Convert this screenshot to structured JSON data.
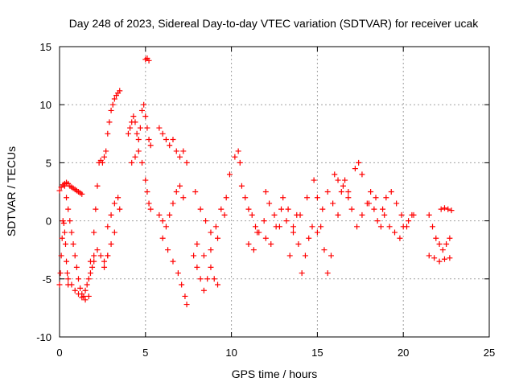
{
  "chart_data": {
    "type": "scatter",
    "title": "Day 248 of 2023, Sidereal Day-to-day VTEC variation (SDTVAR) for receiver ucak",
    "xlabel": "GPS time / hours",
    "ylabel": "SDTVAR / TECUs",
    "xlim": [
      0,
      25
    ],
    "ylim": [
      -10,
      15
    ],
    "xticks": [
      0,
      5,
      10,
      15,
      20,
      25
    ],
    "yticks": [
      -10,
      -5,
      0,
      5,
      10,
      15
    ],
    "xtick_labels": [
      "0",
      "5",
      "10",
      "15",
      "20",
      "25"
    ],
    "ytick_labels": [
      "-10",
      "-5",
      "0",
      "5",
      "10",
      "15"
    ],
    "grid": true,
    "marker": "+",
    "color": "#ff0000",
    "series": [
      {
        "name": "SDTVAR",
        "points": [
          [
            0.0,
            2.6
          ],
          [
            0.1,
            2.9
          ],
          [
            0.2,
            3.1
          ],
          [
            0.3,
            3.2
          ],
          [
            0.4,
            3.3
          ],
          [
            0.5,
            3.2
          ],
          [
            0.6,
            3.0
          ],
          [
            0.7,
            2.9
          ],
          [
            0.8,
            2.8
          ],
          [
            0.9,
            2.7
          ],
          [
            1.0,
            2.6
          ],
          [
            1.1,
            2.5
          ],
          [
            1.2,
            2.4
          ],
          [
            1.3,
            2.3
          ],
          [
            0.0,
            -5.5
          ],
          [
            0.05,
            -4.5
          ],
          [
            0.1,
            -3.0
          ],
          [
            0.15,
            -1.5
          ],
          [
            0.2,
            0.0
          ],
          [
            0.25,
            -0.2
          ],
          [
            0.3,
            -1.0
          ],
          [
            0.35,
            -2.0
          ],
          [
            0.4,
            -3.5
          ],
          [
            0.45,
            -4.5
          ],
          [
            0.5,
            -5.5
          ],
          [
            0.3,
            3.0
          ],
          [
            0.4,
            2.0
          ],
          [
            0.5,
            1.0
          ],
          [
            0.6,
            0.0
          ],
          [
            0.7,
            -1.0
          ],
          [
            0.8,
            -2.0
          ],
          [
            0.9,
            -3.0
          ],
          [
            1.0,
            -4.0
          ],
          [
            1.1,
            -5.0
          ],
          [
            1.2,
            -5.8
          ],
          [
            1.3,
            -6.3
          ],
          [
            1.4,
            -6.5
          ],
          [
            1.5,
            -6.0
          ],
          [
            1.6,
            -5.5
          ],
          [
            1.7,
            -5.0
          ],
          [
            1.8,
            -4.5
          ],
          [
            1.9,
            -4.0
          ],
          [
            2.0,
            -3.5
          ],
          [
            0.5,
            -5.0
          ],
          [
            0.7,
            -5.5
          ],
          [
            0.9,
            -6.0
          ],
          [
            1.1,
            -6.3
          ],
          [
            1.3,
            -6.6
          ],
          [
            1.5,
            -6.8
          ],
          [
            1.7,
            -6.5
          ],
          [
            1.8,
            -3.5
          ],
          [
            2.0,
            -3.0
          ],
          [
            2.2,
            -2.5
          ],
          [
            2.4,
            -3.0
          ],
          [
            2.6,
            -3.5
          ],
          [
            2.8,
            -3.0
          ],
          [
            2.0,
            -1.0
          ],
          [
            2.1,
            1.0
          ],
          [
            2.2,
            3.0
          ],
          [
            2.3,
            5.0
          ],
          [
            2.4,
            5.2
          ],
          [
            2.5,
            5.0
          ],
          [
            2.6,
            5.5
          ],
          [
            2.7,
            6.0
          ],
          [
            2.8,
            7.5
          ],
          [
            2.9,
            8.5
          ],
          [
            3.0,
            9.5
          ],
          [
            3.1,
            10.0
          ],
          [
            3.2,
            10.5
          ],
          [
            3.3,
            10.8
          ],
          [
            3.4,
            11.0
          ],
          [
            3.5,
            11.2
          ],
          [
            2.8,
            -0.5
          ],
          [
            3.0,
            0.5
          ],
          [
            3.2,
            1.5
          ],
          [
            3.4,
            2.0
          ],
          [
            3.5,
            1.0
          ],
          [
            2.6,
            -4.0
          ],
          [
            2.8,
            -3.0
          ],
          [
            3.0,
            -2.0
          ],
          [
            3.2,
            -1.0
          ],
          [
            4.0,
            7.5
          ],
          [
            4.1,
            8.0
          ],
          [
            4.2,
            8.5
          ],
          [
            4.3,
            9.0
          ],
          [
            4.4,
            8.5
          ],
          [
            4.5,
            7.5
          ],
          [
            4.6,
            7.0
          ],
          [
            4.7,
            8.0
          ],
          [
            4.8,
            9.5
          ],
          [
            4.9,
            10.0
          ],
          [
            5.0,
            9.0
          ],
          [
            5.1,
            8.0
          ],
          [
            5.2,
            7.0
          ],
          [
            5.3,
            6.5
          ],
          [
            4.2,
            5.0
          ],
          [
            4.4,
            5.5
          ],
          [
            4.6,
            6.0
          ],
          [
            4.8,
            5.0
          ],
          [
            5.0,
            3.5
          ],
          [
            5.1,
            2.5
          ],
          [
            5.2,
            1.5
          ],
          [
            5.3,
            1.0
          ],
          [
            5.0,
            13.9
          ],
          [
            5.1,
            14.0
          ],
          [
            5.2,
            13.8
          ],
          [
            5.8,
            8.0
          ],
          [
            6.0,
            7.5
          ],
          [
            6.2,
            7.0
          ],
          [
            6.4,
            6.5
          ],
          [
            6.6,
            7.0
          ],
          [
            6.8,
            6.0
          ],
          [
            7.0,
            5.5
          ],
          [
            7.2,
            6.0
          ],
          [
            7.4,
            5.0
          ],
          [
            5.8,
            0.5
          ],
          [
            6.0,
            0.0
          ],
          [
            6.2,
            -0.5
          ],
          [
            6.4,
            0.5
          ],
          [
            6.6,
            1.5
          ],
          [
            6.8,
            2.5
          ],
          [
            7.0,
            3.0
          ],
          [
            7.2,
            2.0
          ],
          [
            6.0,
            -1.5
          ],
          [
            6.3,
            -2.5
          ],
          [
            6.6,
            -3.5
          ],
          [
            6.9,
            -4.5
          ],
          [
            7.1,
            -5.5
          ],
          [
            7.3,
            -6.5
          ],
          [
            7.4,
            -7.2
          ],
          [
            7.8,
            -3.0
          ],
          [
            8.0,
            -4.0
          ],
          [
            8.2,
            -5.0
          ],
          [
            8.4,
            -6.0
          ],
          [
            8.6,
            -5.0
          ],
          [
            8.8,
            -4.0
          ],
          [
            9.0,
            -5.0
          ],
          [
            9.2,
            -5.5
          ],
          [
            7.9,
            2.5
          ],
          [
            8.2,
            1.0
          ],
          [
            8.5,
            0.0
          ],
          [
            8.8,
            -1.0
          ],
          [
            9.1,
            -0.5
          ],
          [
            9.4,
            1.0
          ],
          [
            9.7,
            2.0
          ],
          [
            9.9,
            4.0
          ],
          [
            8.0,
            -2.0
          ],
          [
            8.4,
            -3.0
          ],
          [
            8.8,
            -2.5
          ],
          [
            9.2,
            -1.5
          ],
          [
            9.6,
            0.5
          ],
          [
            10.2,
            5.5
          ],
          [
            10.4,
            6.0
          ],
          [
            10.5,
            5.0
          ],
          [
            10.6,
            3.0
          ],
          [
            10.8,
            2.0
          ],
          [
            11.0,
            1.0
          ],
          [
            11.2,
            0.5
          ],
          [
            11.4,
            -0.5
          ],
          [
            11.5,
            -1.0
          ],
          [
            11.0,
            -2.0
          ],
          [
            11.3,
            -2.5
          ],
          [
            11.6,
            -1.0
          ],
          [
            11.9,
            0.0
          ],
          [
            12.0,
            2.5
          ],
          [
            12.2,
            1.5
          ],
          [
            12.5,
            0.5
          ],
          [
            12.8,
            -0.5
          ],
          [
            12.0,
            -1.5
          ],
          [
            12.3,
            -2.0
          ],
          [
            12.6,
            -0.5
          ],
          [
            12.9,
            1.0
          ],
          [
            13.2,
            0.0
          ],
          [
            13.4,
            -3.0
          ],
          [
            13.6,
            -1.0
          ],
          [
            13.8,
            0.5
          ],
          [
            13.0,
            2.0
          ],
          [
            13.3,
            1.0
          ],
          [
            13.6,
            -0.5
          ],
          [
            13.9,
            -2.0
          ],
          [
            14.1,
            -4.5
          ],
          [
            14.3,
            -3.0
          ],
          [
            14.5,
            -1.5
          ],
          [
            14.7,
            -0.5
          ],
          [
            14.0,
            0.5
          ],
          [
            14.4,
            2.0
          ],
          [
            14.8,
            3.5
          ],
          [
            15.0,
            2.0
          ],
          [
            15.2,
            -0.5
          ],
          [
            15.4,
            -2.5
          ],
          [
            15.6,
            -4.5
          ],
          [
            15.8,
            -3.0
          ],
          [
            15.0,
            -1.0
          ],
          [
            15.3,
            1.0
          ],
          [
            15.6,
            2.5
          ],
          [
            15.9,
            1.5
          ],
          [
            16.2,
            0.5
          ],
          [
            16.4,
            2.5
          ],
          [
            16.6,
            3.5
          ],
          [
            16.8,
            2.0
          ],
          [
            16.0,
            4.0
          ],
          [
            16.2,
            3.5
          ],
          [
            16.5,
            3.0
          ],
          [
            16.8,
            2.5
          ],
          [
            17.0,
            1.0
          ],
          [
            17.2,
            4.5
          ],
          [
            17.4,
            5.0
          ],
          [
            17.6,
            4.0
          ],
          [
            17.3,
            -0.5
          ],
          [
            17.6,
            0.5
          ],
          [
            17.9,
            1.5
          ],
          [
            18.1,
            2.5
          ],
          [
            18.3,
            1.0
          ],
          [
            18.5,
            0.0
          ],
          [
            18.7,
            -0.5
          ],
          [
            18.9,
            0.5
          ],
          [
            18.0,
            1.5
          ],
          [
            18.4,
            2.0
          ],
          [
            18.8,
            1.0
          ],
          [
            19.2,
            -0.5
          ],
          [
            19.5,
            -1.0
          ],
          [
            19.8,
            -1.5
          ],
          [
            20.0,
            -0.5
          ],
          [
            20.3,
            0.0
          ],
          [
            20.6,
            0.5
          ],
          [
            19.0,
            2.0
          ],
          [
            19.3,
            2.5
          ],
          [
            19.6,
            1.5
          ],
          [
            19.9,
            0.5
          ],
          [
            20.2,
            -0.5
          ],
          [
            20.5,
            0.5
          ],
          [
            21.5,
            0.5
          ],
          [
            21.7,
            -0.5
          ],
          [
            21.9,
            -1.5
          ],
          [
            22.1,
            -2.0
          ],
          [
            22.3,
            -2.5
          ],
          [
            22.5,
            -2.0
          ],
          [
            22.7,
            -1.5
          ],
          [
            21.5,
            -3.0
          ],
          [
            21.8,
            -3.2
          ],
          [
            22.1,
            -3.5
          ],
          [
            22.4,
            -3.3
          ],
          [
            22.7,
            -3.2
          ],
          [
            22.2,
            1.0
          ],
          [
            22.4,
            1.1
          ],
          [
            22.6,
            1.0
          ],
          [
            22.8,
            0.9
          ]
        ]
      }
    ]
  }
}
